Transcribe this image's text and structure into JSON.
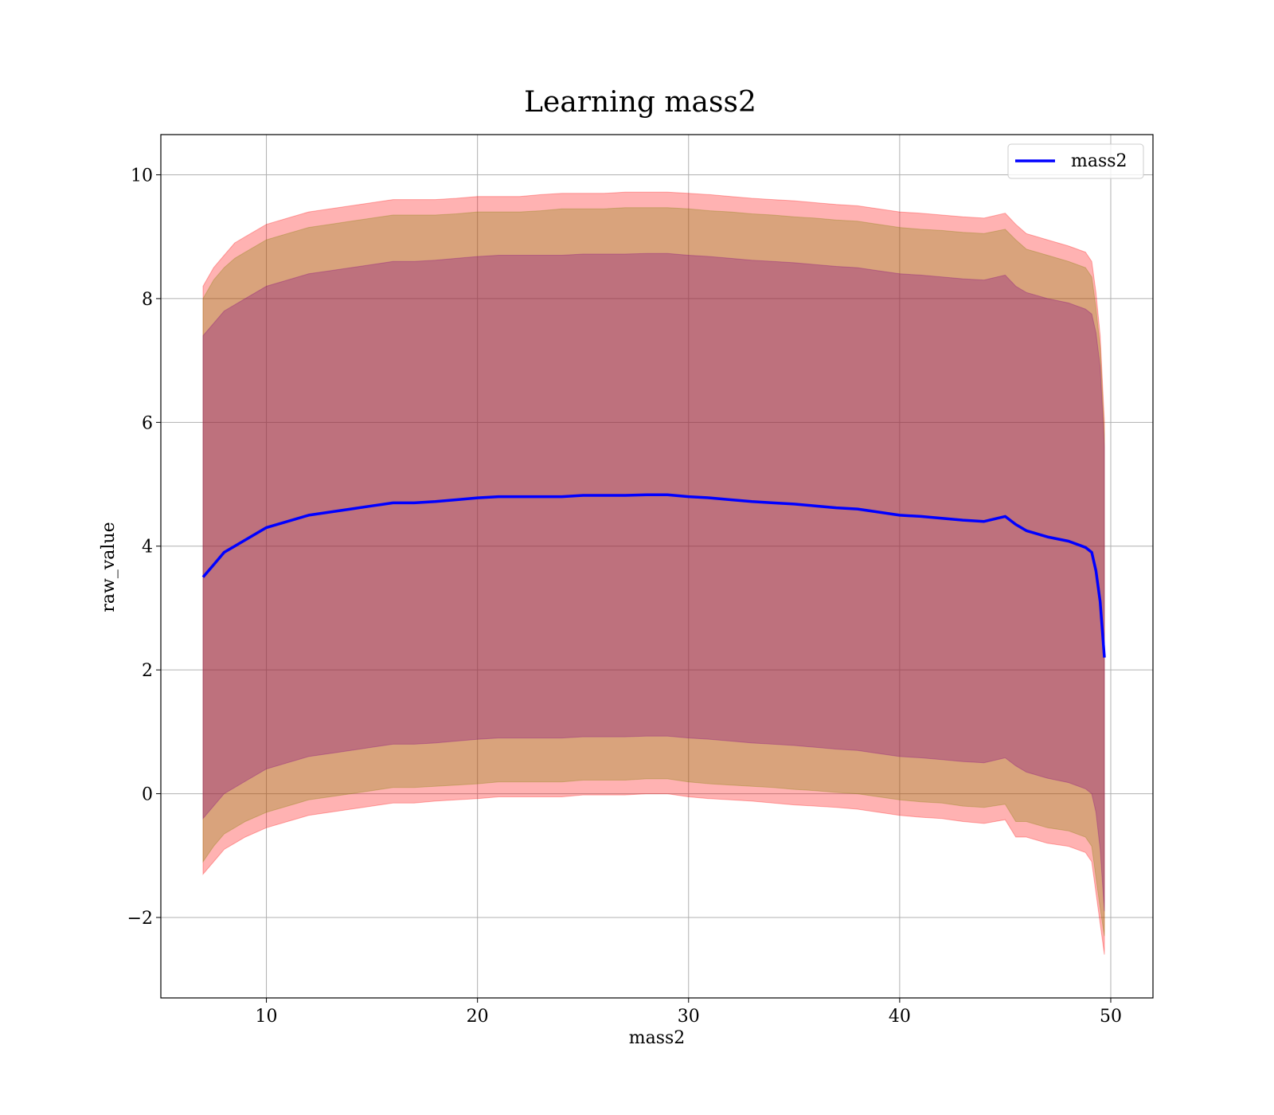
{
  "chart_data": {
    "type": "area",
    "title": "Learning mass2",
    "xlabel": "mass2",
    "ylabel": "raw_value",
    "xlim": [
      5,
      52
    ],
    "ylim": [
      -3.3,
      10.65
    ],
    "xticks": [
      10,
      20,
      30,
      40,
      50
    ],
    "yticks": [
      -2,
      0,
      2,
      4,
      6,
      8,
      10
    ],
    "xtick_labels": [
      "10",
      "20",
      "30",
      "40",
      "50"
    ],
    "ytick_labels": [
      "−2",
      "0",
      "2",
      "4",
      "6",
      "8",
      "10"
    ],
    "grid": true,
    "legend_position": "top-right",
    "series": [
      {
        "name": "mass2",
        "color": "#0000ff",
        "x": [
          7.0,
          7.5,
          8,
          8.5,
          9,
          10,
          11,
          12,
          13,
          14,
          15,
          16,
          17,
          18,
          19,
          20,
          21,
          22,
          23,
          24,
          25,
          26,
          27,
          28,
          29,
          30,
          31,
          32,
          33,
          34,
          35,
          36,
          37,
          38,
          39,
          40,
          41,
          42,
          43,
          44,
          45,
          45.5,
          46,
          47,
          48,
          48.8,
          49.1,
          49.3,
          49.5,
          49.7
        ],
        "values": [
          3.5,
          3.7,
          3.9,
          4.0,
          4.1,
          4.3,
          4.4,
          4.5,
          4.55,
          4.6,
          4.65,
          4.7,
          4.7,
          4.72,
          4.75,
          4.78,
          4.8,
          4.8,
          4.8,
          4.8,
          4.82,
          4.82,
          4.82,
          4.83,
          4.83,
          4.8,
          4.78,
          4.75,
          4.72,
          4.7,
          4.68,
          4.65,
          4.62,
          4.6,
          4.55,
          4.5,
          4.48,
          4.45,
          4.42,
          4.4,
          4.48,
          4.35,
          4.25,
          4.15,
          4.08,
          3.98,
          3.9,
          3.6,
          3.1,
          2.2
        ]
      }
    ],
    "bands": [
      {
        "color": "#ff0000",
        "opacity": 0.3,
        "x": [
          7.0,
          7.5,
          8,
          8.5,
          9,
          10,
          11,
          12,
          13,
          14,
          15,
          16,
          17,
          18,
          19,
          20,
          21,
          22,
          23,
          24,
          25,
          26,
          27,
          28,
          29,
          30,
          31,
          32,
          33,
          34,
          35,
          36,
          37,
          38,
          39,
          40,
          41,
          42,
          43,
          44,
          45,
          45.5,
          46,
          47,
          48,
          48.8,
          49.1,
          49.3,
          49.5,
          49.7
        ],
        "upper": [
          8.2,
          8.5,
          8.7,
          8.9,
          9.0,
          9.2,
          9.3,
          9.4,
          9.45,
          9.5,
          9.55,
          9.6,
          9.6,
          9.6,
          9.62,
          9.65,
          9.65,
          9.65,
          9.68,
          9.7,
          9.7,
          9.7,
          9.72,
          9.72,
          9.72,
          9.7,
          9.68,
          9.65,
          9.62,
          9.6,
          9.58,
          9.55,
          9.52,
          9.5,
          9.45,
          9.4,
          9.38,
          9.35,
          9.32,
          9.3,
          9.38,
          9.2,
          9.05,
          8.95,
          8.85,
          8.75,
          8.6,
          8.1,
          7.4,
          6.0
        ],
        "lower": [
          -1.3,
          -1.1,
          -0.9,
          -0.8,
          -0.7,
          -0.55,
          -0.45,
          -0.35,
          -0.3,
          -0.25,
          -0.2,
          -0.15,
          -0.15,
          -0.12,
          -0.1,
          -0.08,
          -0.05,
          -0.05,
          -0.05,
          -0.05,
          -0.02,
          -0.02,
          -0.02,
          0.0,
          0.0,
          -0.05,
          -0.08,
          -0.1,
          -0.12,
          -0.15,
          -0.18,
          -0.2,
          -0.22,
          -0.25,
          -0.3,
          -0.35,
          -0.38,
          -0.4,
          -0.45,
          -0.48,
          -0.42,
          -0.7,
          -0.7,
          -0.8,
          -0.85,
          -0.95,
          -1.1,
          -1.6,
          -2.1,
          -2.6
        ]
      },
      {
        "color": "#808000",
        "opacity": 0.3,
        "x": [
          7.0,
          7.5,
          8,
          8.5,
          9,
          10,
          11,
          12,
          13,
          14,
          15,
          16,
          17,
          18,
          19,
          20,
          21,
          22,
          23,
          24,
          25,
          26,
          27,
          28,
          29,
          30,
          31,
          32,
          33,
          34,
          35,
          36,
          37,
          38,
          39,
          40,
          41,
          42,
          43,
          44,
          45,
          45.5,
          46,
          47,
          48,
          48.8,
          49.1,
          49.3,
          49.5,
          49.7
        ],
        "upper": [
          8.0,
          8.3,
          8.5,
          8.65,
          8.75,
          8.95,
          9.05,
          9.15,
          9.2,
          9.25,
          9.3,
          9.35,
          9.35,
          9.35,
          9.37,
          9.4,
          9.4,
          9.4,
          9.42,
          9.45,
          9.45,
          9.45,
          9.47,
          9.47,
          9.47,
          9.45,
          9.42,
          9.4,
          9.37,
          9.35,
          9.32,
          9.3,
          9.27,
          9.25,
          9.2,
          9.15,
          9.12,
          9.1,
          9.07,
          9.05,
          9.12,
          8.95,
          8.8,
          8.7,
          8.6,
          8.5,
          8.35,
          7.85,
          7.2,
          5.8
        ],
        "lower": [
          -1.1,
          -0.85,
          -0.65,
          -0.55,
          -0.45,
          -0.3,
          -0.2,
          -0.1,
          -0.05,
          0.0,
          0.05,
          0.1,
          0.1,
          0.12,
          0.14,
          0.16,
          0.19,
          0.19,
          0.19,
          0.19,
          0.22,
          0.22,
          0.22,
          0.24,
          0.24,
          0.19,
          0.16,
          0.14,
          0.12,
          0.1,
          0.07,
          0.05,
          0.02,
          0.0,
          -0.05,
          -0.1,
          -0.13,
          -0.15,
          -0.2,
          -0.22,
          -0.17,
          -0.45,
          -0.45,
          -0.55,
          -0.6,
          -0.7,
          -0.85,
          -1.35,
          -1.85,
          -2.3
        ]
      },
      {
        "color": "#800080",
        "opacity": 0.3,
        "x": [
          7.0,
          7.5,
          8,
          8.5,
          9,
          10,
          11,
          12,
          13,
          14,
          15,
          16,
          17,
          18,
          19,
          20,
          21,
          22,
          23,
          24,
          25,
          26,
          27,
          28,
          29,
          30,
          31,
          32,
          33,
          34,
          35,
          36,
          37,
          38,
          39,
          40,
          41,
          42,
          43,
          44,
          45,
          45.5,
          46,
          47,
          48,
          48.8,
          49.1,
          49.3,
          49.5,
          49.7
        ],
        "upper": [
          7.4,
          7.6,
          7.8,
          7.9,
          8.0,
          8.2,
          8.3,
          8.4,
          8.45,
          8.5,
          8.55,
          8.6,
          8.6,
          8.62,
          8.65,
          8.68,
          8.7,
          8.7,
          8.7,
          8.7,
          8.72,
          8.72,
          8.72,
          8.73,
          8.73,
          8.7,
          8.68,
          8.65,
          8.62,
          8.6,
          8.58,
          8.55,
          8.52,
          8.5,
          8.45,
          8.4,
          8.38,
          8.35,
          8.32,
          8.3,
          8.38,
          8.2,
          8.1,
          8.0,
          7.93,
          7.83,
          7.75,
          7.45,
          6.9,
          5.6
        ],
        "lower": [
          -0.4,
          -0.2,
          0.0,
          0.1,
          0.2,
          0.4,
          0.5,
          0.6,
          0.65,
          0.7,
          0.75,
          0.8,
          0.8,
          0.82,
          0.85,
          0.88,
          0.9,
          0.9,
          0.9,
          0.9,
          0.92,
          0.92,
          0.92,
          0.93,
          0.93,
          0.9,
          0.88,
          0.85,
          0.82,
          0.8,
          0.78,
          0.75,
          0.72,
          0.7,
          0.65,
          0.6,
          0.58,
          0.55,
          0.52,
          0.5,
          0.58,
          0.45,
          0.35,
          0.25,
          0.18,
          0.08,
          0.0,
          -0.3,
          -0.9,
          -1.9
        ]
      }
    ]
  }
}
